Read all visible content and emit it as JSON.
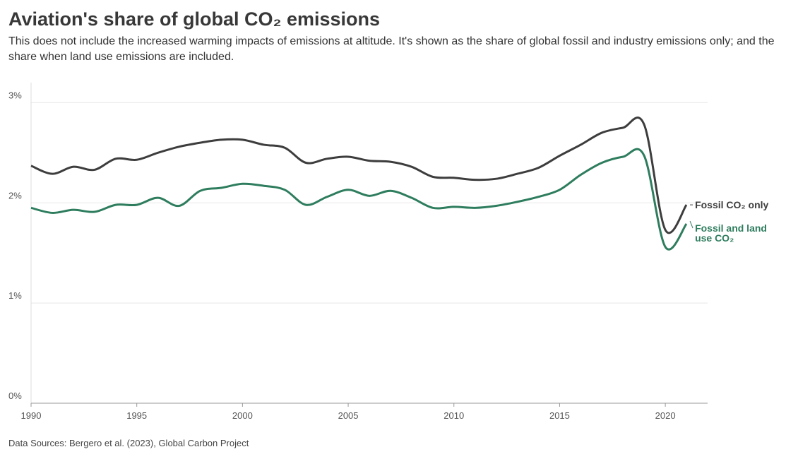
{
  "chart_data": {
    "type": "line",
    "title": "Aviation's share of global CO₂ emissions",
    "subtitle": "This does not include the increased warming impacts of emissions at altitude. It's shown as the share of global fossil and industry emissions only; and the share when land use emissions are included.",
    "source": "Data Sources: Bergero et al. (2023), Global Carbon Project",
    "x": [
      1990,
      1991,
      1992,
      1993,
      1994,
      1995,
      1996,
      1997,
      1998,
      1999,
      2000,
      2001,
      2002,
      2003,
      2004,
      2005,
      2006,
      2007,
      2008,
      2009,
      2010,
      2011,
      2012,
      2013,
      2014,
      2015,
      2016,
      2017,
      2018,
      2019,
      2020,
      2021
    ],
    "series": [
      {
        "name": "Fossil CO₂ only",
        "color": "#3d3d3d",
        "values": [
          2.37,
          2.29,
          2.36,
          2.33,
          2.44,
          2.43,
          2.5,
          2.56,
          2.6,
          2.63,
          2.63,
          2.58,
          2.55,
          2.4,
          2.44,
          2.46,
          2.42,
          2.41,
          2.36,
          2.26,
          2.25,
          2.23,
          2.24,
          2.29,
          2.35,
          2.47,
          2.58,
          2.7,
          2.75,
          2.78,
          1.73,
          1.98
        ]
      },
      {
        "name": "Fossil and land use CO₂",
        "color": "#2e7d5e",
        "values": [
          1.95,
          1.9,
          1.93,
          1.91,
          1.98,
          1.98,
          2.05,
          1.97,
          2.12,
          2.15,
          2.19,
          2.17,
          2.13,
          1.98,
          2.06,
          2.13,
          2.07,
          2.12,
          2.05,
          1.95,
          1.96,
          1.95,
          1.97,
          2.01,
          2.06,
          2.13,
          2.28,
          2.4,
          2.46,
          2.47,
          1.56,
          1.79
        ]
      }
    ],
    "xlim": [
      1990,
      2022
    ],
    "xticks": [
      1990,
      1995,
      2000,
      2005,
      2010,
      2015,
      2020
    ],
    "ylim": [
      0,
      3.2
    ],
    "yticks": [
      {
        "value": 0,
        "label": "0%"
      },
      {
        "value": 1,
        "label": "1%"
      },
      {
        "value": 2,
        "label": "2%"
      },
      {
        "value": 3,
        "label": "3%"
      }
    ],
    "grid": true
  }
}
